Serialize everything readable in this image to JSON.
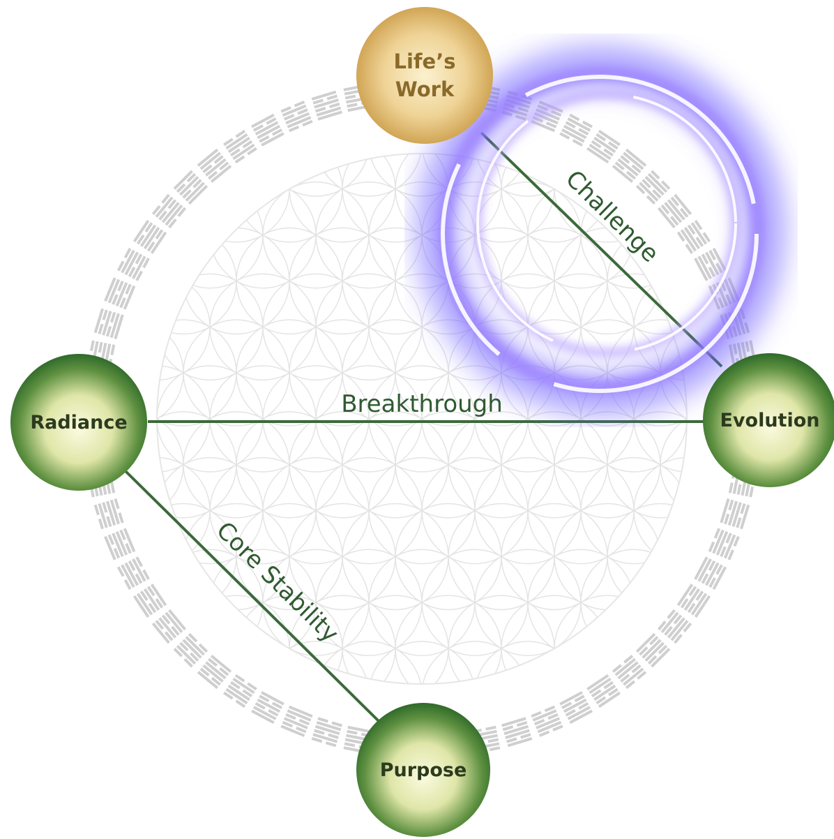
{
  "nodes": [
    {
      "label": [
        "Life’s",
        "Work"
      ]
    },
    {
      "label": [
        "Radiance"
      ]
    },
    {
      "label": [
        "Evolution"
      ]
    },
    {
      "label": [
        "Purpose"
      ]
    }
  ],
  "edges": [
    {
      "label": "Challenge"
    },
    {
      "label": "Breakthrough"
    },
    {
      "label": "Core Stability"
    }
  ]
}
